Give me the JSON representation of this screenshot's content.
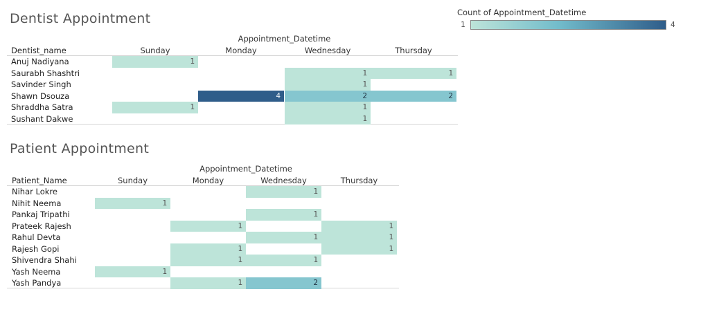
{
  "legend": {
    "title": "Count of Appointment_Datetime",
    "min_label": "1",
    "max_label": "4",
    "colors": [
      "#bde4d9",
      "#72bccb",
      "#2f5d8a"
    ]
  },
  "chart_data": [
    {
      "type": "heatmap",
      "title": "Dentist Appointment",
      "column_dimension": "Appointment_Datetime",
      "row_dimension": "Dentist_name",
      "columns": [
        "Sunday",
        "Monday",
        "Wednesday",
        "Thursday"
      ],
      "rows": [
        "Anuj Nadiyana",
        "Saurabh Shashtri",
        "Savinder Singh",
        "Shawn Dsouza",
        "Shraddha Satra",
        "Sushant Dakwe"
      ],
      "values": [
        [
          1,
          null,
          null,
          null
        ],
        [
          null,
          null,
          1,
          1
        ],
        [
          null,
          null,
          1,
          null
        ],
        [
          null,
          4,
          2,
          2
        ],
        [
          1,
          null,
          1,
          null
        ],
        [
          null,
          null,
          1,
          null
        ]
      ]
    },
    {
      "type": "heatmap",
      "title": "Patient Appointment",
      "column_dimension": "Appointment_Datetime",
      "row_dimension": "Patient_Name",
      "columns": [
        "Sunday",
        "Monday",
        "Wednesday",
        "Thursday"
      ],
      "rows": [
        "Nihar Lokre",
        "Nihit Neema",
        "Pankaj Tripathi",
        "Prateek Rajesh",
        "Rahul Devta",
        "Rajesh Gopi",
        "Shivendra Shahi",
        "Yash Neema",
        "Yash Pandya"
      ],
      "values": [
        [
          null,
          null,
          1,
          null
        ],
        [
          1,
          null,
          null,
          null
        ],
        [
          null,
          null,
          1,
          null
        ],
        [
          null,
          1,
          null,
          1
        ],
        [
          null,
          null,
          1,
          1
        ],
        [
          null,
          1,
          null,
          1
        ],
        [
          null,
          1,
          1,
          null
        ],
        [
          1,
          null,
          null,
          null
        ],
        [
          null,
          1,
          2,
          null
        ]
      ]
    }
  ]
}
